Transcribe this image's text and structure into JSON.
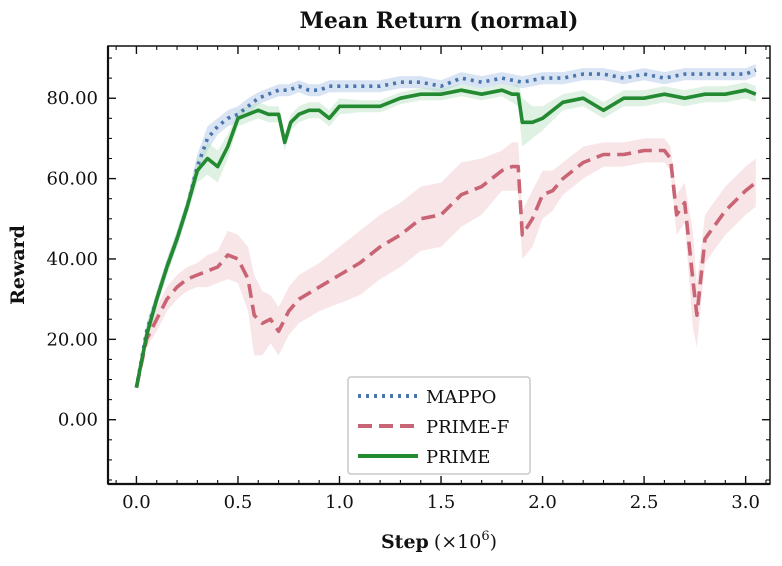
{
  "chart_data": {
    "type": "line",
    "title": "Mean Return (normal)",
    "xlabel": "Step",
    "xlabel_unit": "(×10",
    "xlabel_exp": "6",
    "xlabel_close": ")",
    "ylabel": "Reward",
    "xlim": [
      -0.14,
      3.12
    ],
    "ylim": [
      -16,
      93
    ],
    "xticks": [
      0.0,
      0.5,
      1.0,
      1.5,
      2.0,
      2.5,
      3.0
    ],
    "xtick_labels": [
      "0.0",
      "0.5",
      "1.0",
      "1.5",
      "2.0",
      "2.5",
      "3.0"
    ],
    "yticks": [
      0,
      20,
      40,
      60,
      80
    ],
    "ytick_labels": [
      "0.00",
      "20.00",
      "40.00",
      "60.00",
      "80.00"
    ],
    "grid": false,
    "legend_position": "bottom-center",
    "series": [
      {
        "name": "MAPPO",
        "color": "#4a76ad",
        "style": "dotted",
        "band_color": "#a9c2e6",
        "x": [
          0.0,
          0.05,
          0.1,
          0.15,
          0.2,
          0.25,
          0.3,
          0.35,
          0.4,
          0.45,
          0.5,
          0.55,
          0.6,
          0.65,
          0.7,
          0.75,
          0.8,
          0.85,
          0.9,
          0.95,
          1.0,
          1.1,
          1.2,
          1.3,
          1.4,
          1.5,
          1.6,
          1.7,
          1.8,
          1.9,
          2.0,
          2.1,
          2.2,
          2.3,
          2.4,
          2.5,
          2.6,
          2.7,
          2.8,
          2.9,
          3.0,
          3.05
        ],
        "y": [
          8,
          22,
          30,
          38,
          45,
          53,
          63,
          70,
          73,
          75,
          76,
          78,
          80,
          81,
          82,
          82,
          83,
          82,
          82,
          83,
          83,
          83,
          83,
          84,
          84,
          83,
          85,
          84,
          85,
          84,
          85,
          85,
          86,
          86,
          85,
          86,
          85,
          86,
          86,
          86,
          86,
          87
        ],
        "band": [
          0,
          2,
          2,
          2,
          2,
          2,
          3,
          3,
          2,
          2,
          2,
          2,
          1.5,
          1.5,
          1.5,
          1.5,
          1.5,
          1.5,
          1.5,
          1.5,
          1.5,
          1.5,
          1.5,
          1.5,
          1.5,
          1.5,
          1.5,
          1.5,
          1.5,
          1.5,
          1.5,
          1.5,
          1.5,
          1.5,
          1.5,
          1.5,
          1.5,
          1.5,
          1.5,
          1.5,
          1.5,
          1.5
        ]
      },
      {
        "name": "PRIME-F",
        "color": "#c96474",
        "style": "dashed",
        "band_color": "#efc5cd",
        "x": [
          0.0,
          0.05,
          0.1,
          0.15,
          0.2,
          0.25,
          0.3,
          0.35,
          0.4,
          0.45,
          0.5,
          0.55,
          0.58,
          0.62,
          0.66,
          0.7,
          0.75,
          0.8,
          0.9,
          1.0,
          1.1,
          1.2,
          1.3,
          1.4,
          1.5,
          1.6,
          1.7,
          1.8,
          1.85,
          1.88,
          1.9,
          1.95,
          2.0,
          2.05,
          2.1,
          2.2,
          2.3,
          2.4,
          2.5,
          2.6,
          2.63,
          2.66,
          2.7,
          2.74,
          2.76,
          2.8,
          2.9,
          3.0,
          3.05
        ],
        "y": [
          8,
          20,
          25,
          30,
          33,
          35,
          36,
          37,
          38,
          41,
          40,
          35,
          26,
          24,
          25,
          22,
          27,
          30,
          33,
          36,
          39,
          43,
          46,
          50,
          51,
          56,
          58,
          62,
          63,
          63,
          46,
          50,
          56,
          57,
          60,
          64,
          66,
          66,
          67,
          67,
          65,
          51,
          54,
          35,
          26,
          45,
          52,
          57,
          59
        ],
        "band": [
          0,
          2,
          3,
          3,
          3,
          3,
          3,
          4,
          4,
          6,
          6,
          8,
          10,
          8,
          6,
          6,
          6,
          6,
          6,
          7,
          8,
          8,
          8,
          8,
          8,
          8,
          7,
          5,
          6,
          6,
          6,
          7,
          6,
          5,
          4,
          4,
          3,
          3,
          3,
          3,
          3,
          5,
          5,
          12,
          8,
          6,
          6,
          6,
          6
        ]
      },
      {
        "name": "PRIME",
        "color": "#238a32",
        "style": "solid",
        "band_color": "#b5dfbe",
        "x": [
          0.0,
          0.05,
          0.1,
          0.15,
          0.2,
          0.25,
          0.3,
          0.35,
          0.4,
          0.45,
          0.5,
          0.55,
          0.6,
          0.65,
          0.7,
          0.73,
          0.76,
          0.8,
          0.85,
          0.9,
          0.95,
          1.0,
          1.1,
          1.2,
          1.3,
          1.4,
          1.5,
          1.6,
          1.7,
          1.8,
          1.85,
          1.88,
          1.9,
          1.95,
          2.0,
          2.1,
          2.2,
          2.3,
          2.4,
          2.5,
          2.6,
          2.7,
          2.8,
          2.9,
          3.0,
          3.05
        ],
        "y": [
          8,
          21,
          30,
          38,
          45,
          53,
          62,
          65,
          63,
          68,
          75,
          76,
          77,
          76,
          76,
          69,
          74,
          76,
          77,
          77,
          75,
          78,
          78,
          78,
          80,
          81,
          81,
          82,
          81,
          82,
          81,
          81,
          74,
          74,
          75,
          79,
          80,
          77,
          80,
          80,
          81,
          80,
          81,
          81,
          82,
          81
        ],
        "band": [
          0,
          2,
          2,
          2,
          2,
          2,
          3,
          4,
          4,
          3,
          2,
          2,
          2,
          2,
          2,
          2,
          2,
          2,
          2,
          2,
          2,
          2,
          1.5,
          1.5,
          1.5,
          1.5,
          1.5,
          1.5,
          1.5,
          1.5,
          2,
          3,
          6,
          4,
          3,
          2,
          2,
          2,
          2,
          2,
          2,
          2,
          2,
          2,
          2,
          2
        ]
      }
    ]
  }
}
